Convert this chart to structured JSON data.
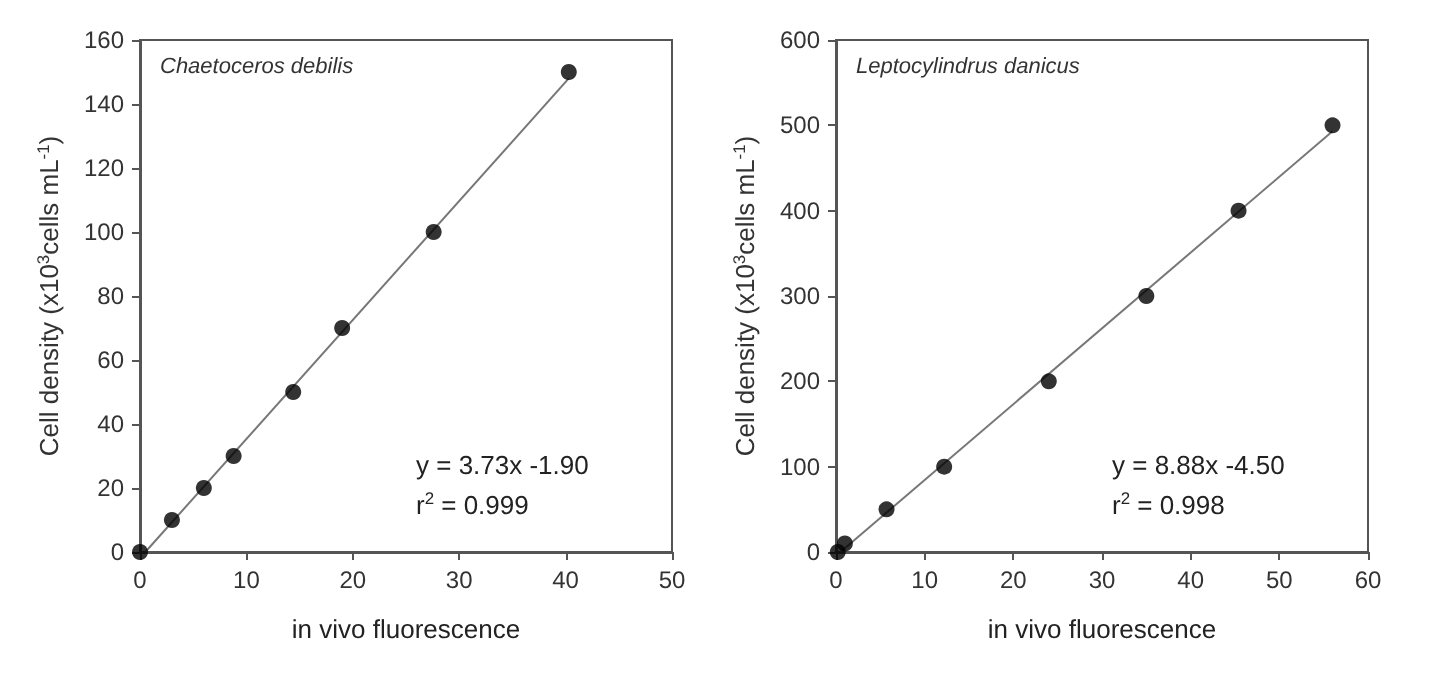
{
  "chart_data": [
    {
      "type": "scatter",
      "xlabel": "in vivo fluorescence",
      "ylabel": "Cell density (x10$^{3}$cells mL$^{-1}$)",
      "xlim": [
        0,
        50
      ],
      "xticks": [
        0,
        10,
        20,
        30,
        40,
        50
      ],
      "ylim": [
        0,
        160
      ],
      "yticks": [
        0,
        20,
        40,
        60,
        80,
        100,
        120,
        140,
        160
      ],
      "grid": false,
      "annotations": [
        "Chaetoceros debilis",
        "y = 3.73x -1.90",
        "r$^{2}$ = 0.999"
      ],
      "series": [
        {
          "color": "#000000",
          "marker": "circle",
          "x": [
            0,
            3,
            6,
            8.8,
            14.4,
            19,
            27.6,
            40.3
          ],
          "values": [
            0,
            10,
            20,
            30,
            50,
            70,
            100,
            150
          ]
        },
        {
          "type": "line",
          "marker": "none",
          "color": "#777777",
          "x": [
            0.5,
            40.3
          ],
          "values": [
            0,
            148
          ]
        }
      ]
    },
    {
      "type": "scatter",
      "xlabel": "in vivo fluorescence",
      "ylabel": "Cell density (x10$^{3}$cells mL$^{-1}$)",
      "xlim": [
        0,
        60
      ],
      "xticks": [
        0,
        10,
        20,
        30,
        40,
        50,
        60
      ],
      "ylim": [
        0,
        600
      ],
      "yticks": [
        0,
        100,
        200,
        300,
        400,
        500,
        600
      ],
      "grid": false,
      "annotations": [
        "Leptocylindrus danicus",
        "y = 8.88x -4.50",
        "r$^{2}$ = 0.998"
      ],
      "series": [
        {
          "color": "#000000",
          "marker": "circle",
          "x": [
            0.2,
            1,
            5.7,
            12.2,
            24,
            35,
            45.4,
            56
          ],
          "values": [
            0,
            10,
            50,
            100,
            200,
            300,
            400,
            500
          ]
        },
        {
          "type": "line",
          "marker": "none",
          "color": "#777777",
          "x": [
            0.5,
            56
          ],
          "values": [
            0,
            493
          ]
        }
      ]
    }
  ]
}
